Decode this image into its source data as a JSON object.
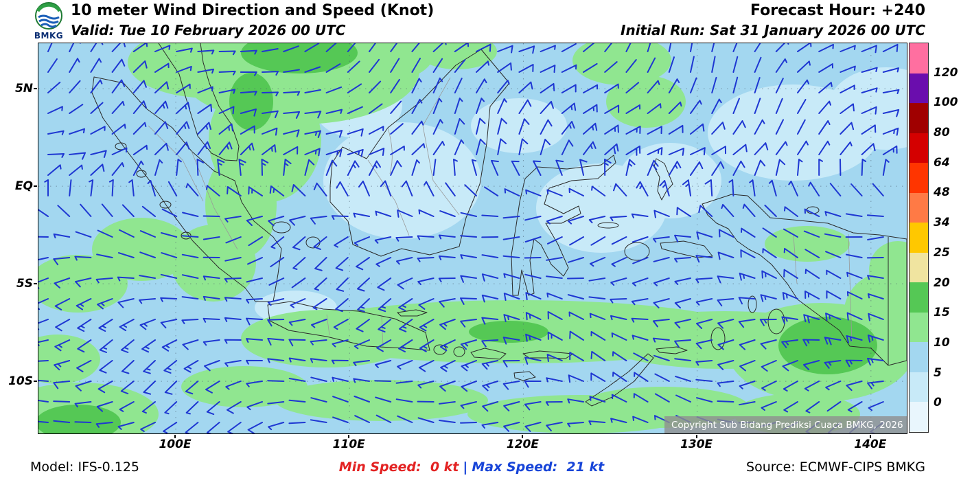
{
  "header": {
    "logo_text": "BMKG",
    "title": "10 meter Wind Direction and Speed (Knot)",
    "valid_line": "Valid: Tue 10 February 2026 00 UTC",
    "forecast_hour": "Forecast Hour: +240",
    "initial_run": "Initial Run: Sat 31 January 2026 00 UTC"
  },
  "map": {
    "copyright": "Copyright Sub Bidang Prediksi Cuaca BMKG, 2026",
    "lat_ticks": [
      {
        "label": "5N",
        "lat": 5
      },
      {
        "label": "EQ",
        "lat": 0
      },
      {
        "label": "5S",
        "lat": -5
      },
      {
        "label": "10S",
        "lat": -10
      }
    ],
    "lon_ticks": [
      {
        "label": "100E",
        "lon": 100
      },
      {
        "label": "110E",
        "lon": 110
      },
      {
        "label": "120E",
        "lon": 120
      },
      {
        "label": "130E",
        "lon": 130
      },
      {
        "label": "140E",
        "lon": 140
      }
    ],
    "colors": {
      "sea_5_10_kt": "#A3D7F0",
      "calm_0_5_kt": "#C8EAF8",
      "moderate_10_15_kt": "#90E690",
      "strong_15_20_kt": "#55C855",
      "wind_barb": "#1E37D2"
    }
  },
  "legend": {
    "boundaries_top_to_bottom": [
      "120",
      "100",
      "80",
      "64",
      "48",
      "34",
      "25",
      "20",
      "15",
      "10",
      "5",
      "0"
    ],
    "band_colors_top_to_bottom": [
      "#FF6FA0",
      "#6A0DAD",
      "#A00000",
      "#D40000",
      "#FF3500",
      "#FF7A45",
      "#FFC800",
      "#F0E4A0",
      "#55C855",
      "#90E690",
      "#A3D7F0",
      "#C8EAF8",
      "#E9F6FD"
    ]
  },
  "footer": {
    "model": "Model: IFS-0.125",
    "min_speed": "Min Speed:  0 kt",
    "separator": "|",
    "max_speed": "Max Speed:  21 kt",
    "source": "Source: ECMWF-CIPS BMKG"
  },
  "chart_data": {
    "type": "heatmap",
    "title": "10 meter Wind Direction and Speed (Knot)",
    "units": "knot",
    "region": "Indonesia",
    "lon_ticks": [
      "100E",
      "110E",
      "120E",
      "130E",
      "140E"
    ],
    "lat_ticks": [
      "5N",
      "EQ",
      "5S",
      "10S"
    ],
    "speed_scale_boundaries_kt": [
      0,
      5,
      10,
      15,
      20,
      25,
      34,
      48,
      64,
      80,
      100,
      120
    ],
    "min_speed_kt": 0,
    "max_speed_kt": 21,
    "forecast_hour": "+240",
    "valid_time": "Tue 10 February 2026 00 UTC",
    "initial_run": "Sat 31 January 2026 00 UTC",
    "model": "IFS-0.125",
    "source": "ECMWF-CIPS BMKG"
  }
}
